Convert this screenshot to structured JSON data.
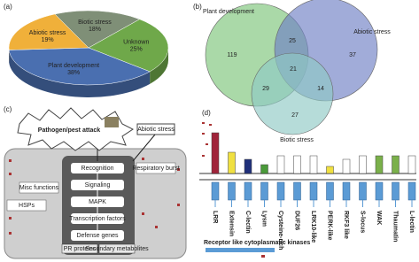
{
  "chart_data": [
    {
      "type": "pie",
      "panel": "(a)",
      "categories": [
        "Biotic stress",
        "Unknown",
        "Plant development",
        "Abiotic stress"
      ],
      "values": [
        18,
        25,
        38,
        19
      ],
      "value_labels": [
        "18%",
        "25%",
        "38%",
        "19%"
      ],
      "colors": [
        "#7f8f77",
        "#6fa84a",
        "#4a6fb0",
        "#f0b03a"
      ]
    },
    {
      "type": "venn",
      "panel": "(b)",
      "sets": [
        {
          "name": "Plant development",
          "color": "#7cc47a"
        },
        {
          "name": "Abiotic stress",
          "color": "#6f7fc4"
        },
        {
          "name": "Biotic stress",
          "color": "#8fc9c4"
        }
      ],
      "values": [
        119,
        37,
        27,
        25,
        29,
        14,
        21
      ]
    }
  ],
  "pathway": {
    "panel": "(c)",
    "trigger": "Pathogen/pest attack",
    "abiotic": "Abiotic stress",
    "steps": [
      "Recognition",
      "Signaling",
      "MAPK",
      "Transcription factors",
      "Defense genes"
    ],
    "side": [
      "Respiratory burst",
      "Misc functions",
      "HSPs"
    ],
    "outputs": [
      "PR proteins",
      "Secondary metabolites"
    ]
  },
  "receptors": {
    "panel": "(d)",
    "families": [
      "LRR",
      "Extensin",
      "C-lectin",
      "Lysm",
      "Cysteine-rich",
      "DUF26",
      "LRK10-like",
      "PERK-like",
      "RKF3 like",
      "S-locus",
      "WAK",
      "Thaumatin",
      "L-lectin"
    ],
    "rlck": "Receptor like cytoplasmatic kinases"
  }
}
